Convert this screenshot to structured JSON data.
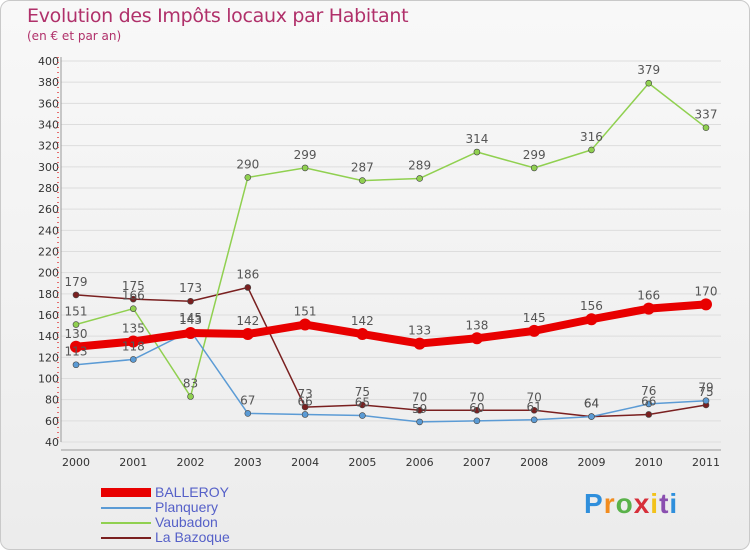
{
  "title": "Evolution des Impôts locaux par Habitant",
  "subtitle": "(en € et par an)",
  "logo": "Proxiti",
  "chart_data": {
    "type": "line",
    "x": [
      "2000",
      "2001",
      "2002",
      "2003",
      "2004",
      "2005",
      "2006",
      "2007",
      "2008",
      "2009",
      "2010",
      "2011"
    ],
    "ylim": [
      40,
      400
    ],
    "yticks": [
      40,
      60,
      80,
      100,
      120,
      140,
      160,
      180,
      200,
      220,
      240,
      260,
      280,
      300,
      320,
      340,
      360,
      380,
      400
    ],
    "grid": true,
    "legend_position": "bottom-left",
    "series": [
      {
        "name": "BALLEROY",
        "color": "#e80000",
        "values": [
          130,
          135,
          143,
          142,
          151,
          142,
          133,
          138,
          145,
          156,
          166,
          170
        ]
      },
      {
        "name": "Planquery",
        "color": "#5b9bd5",
        "values": [
          113,
          118,
          145,
          67,
          66,
          65,
          59,
          60,
          61,
          64,
          76,
          79
        ]
      },
      {
        "name": "Vaubadon",
        "color": "#90d050",
        "values": [
          151,
          166,
          83,
          290,
          299,
          287,
          289,
          314,
          299,
          316,
          379,
          337
        ]
      },
      {
        "name": "La Bazoque",
        "color": "#7a2020",
        "values": [
          179,
          175,
          173,
          186,
          73,
          75,
          70,
          70,
          70,
          64,
          66,
          75
        ]
      }
    ]
  }
}
